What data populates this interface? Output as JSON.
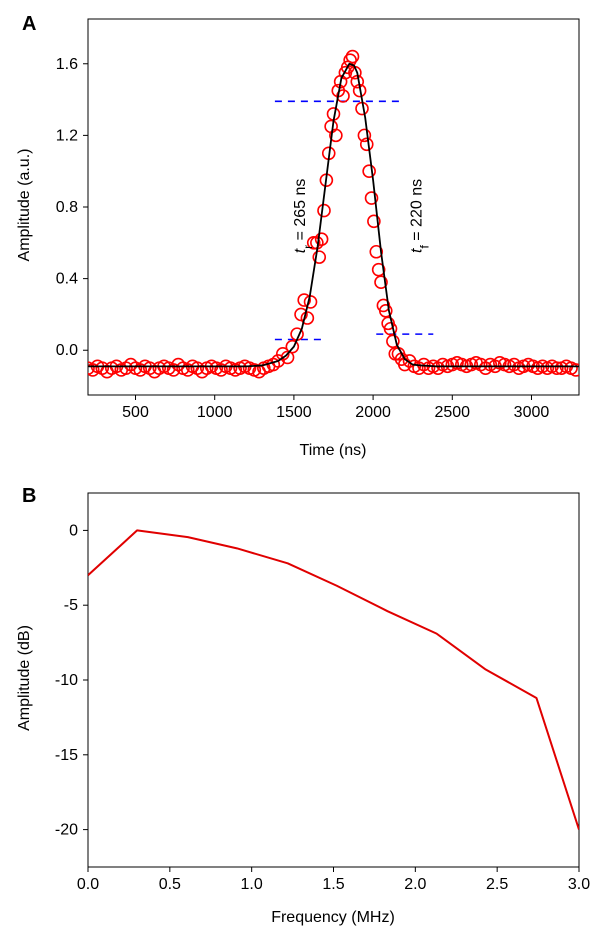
{
  "colors": {
    "measured": "#ff0000",
    "fit": "#000000",
    "threshold": "#0000ff",
    "spectrum": "#e00000"
  },
  "chart_data": [
    {
      "panel": "A",
      "type": "scatter",
      "xlabel": "Time (ns)",
      "ylabel": "Amplitude (a.u.)",
      "xlim": [
        200,
        3300
      ],
      "ylim": [
        -0.25,
        1.85
      ],
      "xticks": [
        "500",
        "1000",
        "1500",
        "2000",
        "2500",
        "3000"
      ],
      "yticks": [
        "0.0",
        "0.4",
        "0.8",
        "1.2",
        "1.6"
      ],
      "grid": false,
      "series": [
        {
          "kind": "measured",
          "marker": "open-circle",
          "x": [
            200,
            230,
            260,
            290,
            320,
            350,
            380,
            410,
            440,
            470,
            500,
            530,
            560,
            590,
            620,
            650,
            680,
            710,
            740,
            770,
            800,
            830,
            860,
            890,
            920,
            950,
            980,
            1010,
            1040,
            1070,
            1100,
            1130,
            1160,
            1190,
            1220,
            1250,
            1280,
            1310,
            1340,
            1370,
            1400,
            1430,
            1460,
            1490,
            1520,
            1545,
            1565,
            1585,
            1605,
            1625,
            1645,
            1660,
            1675,
            1690,
            1705,
            1720,
            1735,
            1750,
            1765,
            1780,
            1795,
            1810,
            1825,
            1840,
            1855,
            1870,
            1885,
            1900,
            1915,
            1930,
            1945,
            1960,
            1975,
            1990,
            2005,
            2020,
            2035,
            2050,
            2065,
            2080,
            2095,
            2110,
            2125,
            2140,
            2160,
            2180,
            2200,
            2230,
            2260,
            2290,
            2320,
            2350,
            2380,
            2410,
            2440,
            2470,
            2500,
            2530,
            2560,
            2590,
            2620,
            2650,
            2680,
            2710,
            2740,
            2770,
            2800,
            2830,
            2860,
            2890,
            2920,
            2950,
            2980,
            3010,
            3040,
            3070,
            3100,
            3130,
            3160,
            3190,
            3220,
            3250,
            3280
          ],
          "y": [
            -0.1,
            -0.11,
            -0.09,
            -0.1,
            -0.12,
            -0.1,
            -0.09,
            -0.11,
            -0.1,
            -0.08,
            -0.1,
            -0.11,
            -0.09,
            -0.1,
            -0.12,
            -0.1,
            -0.09,
            -0.1,
            -0.11,
            -0.08,
            -0.1,
            -0.11,
            -0.09,
            -0.1,
            -0.12,
            -0.1,
            -0.09,
            -0.1,
            -0.11,
            -0.09,
            -0.1,
            -0.11,
            -0.1,
            -0.09,
            -0.1,
            -0.11,
            -0.12,
            -0.1,
            -0.09,
            -0.08,
            -0.06,
            -0.02,
            -0.04,
            0.02,
            0.09,
            0.2,
            0.28,
            0.18,
            0.27,
            0.6,
            0.6,
            0.52,
            0.62,
            0.78,
            0.95,
            1.1,
            1.25,
            1.32,
            1.2,
            1.45,
            1.5,
            1.42,
            1.55,
            1.58,
            1.62,
            1.64,
            1.55,
            1.5,
            1.45,
            1.35,
            1.2,
            1.15,
            1.0,
            0.85,
            0.72,
            0.55,
            0.45,
            0.38,
            0.25,
            0.22,
            0.15,
            0.12,
            0.05,
            -0.02,
            -0.02,
            -0.05,
            -0.08,
            -0.06,
            -0.09,
            -0.1,
            -0.08,
            -0.1,
            -0.09,
            -0.1,
            -0.08,
            -0.09,
            -0.08,
            -0.07,
            -0.08,
            -0.09,
            -0.08,
            -0.07,
            -0.08,
            -0.1,
            -0.08,
            -0.09,
            -0.07,
            -0.08,
            -0.09,
            -0.08,
            -0.1,
            -0.09,
            -0.08,
            -0.09,
            -0.1,
            -0.09,
            -0.1,
            -0.09,
            -0.1,
            -0.1,
            -0.09,
            -0.1,
            -0.11
          ]
        },
        {
          "kind": "fit",
          "x": [
            200,
            1200,
            1300,
            1400,
            1450,
            1500,
            1550,
            1600,
            1650,
            1700,
            1750,
            1800,
            1850,
            1880,
            1900,
            1950,
            2000,
            2050,
            2100,
            2150,
            2200,
            2250,
            2300,
            2400,
            3300
          ],
          "y": [
            -0.09,
            -0.09,
            -0.085,
            -0.06,
            -0.03,
            0.02,
            0.12,
            0.3,
            0.58,
            0.93,
            1.28,
            1.52,
            1.6,
            1.59,
            1.55,
            1.3,
            0.95,
            0.55,
            0.22,
            0.03,
            -0.05,
            -0.08,
            -0.085,
            -0.09,
            -0.09
          ]
        }
      ],
      "thresholds": [
        {
          "label": "rise-high",
          "x": [
            1380,
            2180
          ],
          "y": 1.39
        },
        {
          "label": "rise-low",
          "x": [
            1380,
            1700
          ],
          "y": 0.06
        },
        {
          "label": "fall-low",
          "x": [
            2020,
            2380
          ],
          "y": 0.09
        }
      ],
      "annotations": [
        {
          "name": "rise-time",
          "symbol": "t",
          "sub": "r",
          "text": " = 265 ns",
          "x": 1570,
          "y": 0.75
        },
        {
          "name": "fall-time",
          "symbol": "t",
          "sub": "f",
          "text": " = 220 ns",
          "x": 2305,
          "y": 0.75
        }
      ]
    },
    {
      "panel": "B",
      "type": "line",
      "xlabel": "Frequency (MHz)",
      "ylabel": "Amplitude (dB)",
      "xlim": [
        0,
        3.0
      ],
      "ylim": [
        -22.5,
        2.5
      ],
      "xticks": [
        "0.0",
        "0.5",
        "1.0",
        "1.5",
        "2.0",
        "2.5",
        "3.0"
      ],
      "yticks": [
        "0",
        "-5",
        "-10",
        "-15",
        "-20"
      ],
      "grid": false,
      "series": [
        {
          "kind": "spectrum",
          "x": [
            0.0,
            0.3,
            0.61,
            0.91,
            1.22,
            1.52,
            1.83,
            2.13,
            2.43,
            2.74,
            3.0
          ],
          "y": [
            -3.0,
            0.0,
            -0.45,
            -1.2,
            -2.2,
            -3.7,
            -5.4,
            -6.9,
            -9.3,
            -11.2,
            -20.0
          ]
        }
      ]
    }
  ]
}
